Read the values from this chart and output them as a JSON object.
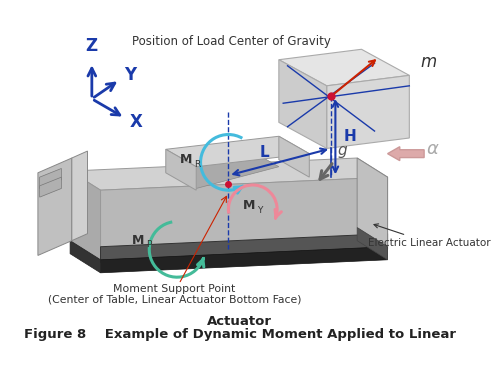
{
  "title_line1": "Figure 8    Example of Dynamic Moment Applied to Linear",
  "title_line2": "Actuator",
  "bg_color": "#ffffff",
  "fig_width": 5.0,
  "fig_height": 3.83,
  "dpi": 100,
  "label_Z": "Z",
  "label_Y": "Y",
  "label_X": "X",
  "label_m": "m",
  "label_L": "L",
  "label_H": "H",
  "label_MR": "M",
  "label_MR_sub": "R",
  "label_MY": "M",
  "label_MY_sub": "Y",
  "label_MP": "M",
  "label_MP_sub": "P",
  "label_alpha": "α",
  "label_g": "g",
  "label_position": "Position of Load Center of Gravity",
  "label_electric": "Electric Linear Actuator",
  "label_support_1": "Moment Support Point",
  "label_support_2": "(Center of Table, Linear Actuator Bottom Face)",
  "blue": "#1a3aaa",
  "red": "#cc2200",
  "cyan": "#44bbdd",
  "green": "#44bb99",
  "pink": "#ee8899",
  "gray_arrow": "#888888",
  "pink_arrow": "#ddaaaa",
  "dark_text": "#333333"
}
